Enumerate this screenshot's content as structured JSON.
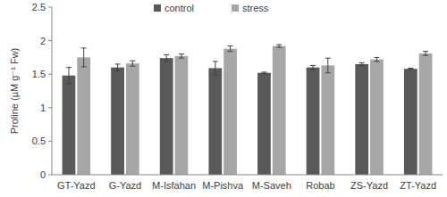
{
  "chart_data": {
    "type": "bar",
    "y_label": "Proline (µM g⁻¹ Fw)",
    "categories": [
      "GT-Yazd",
      "G-Yazd",
      "M-Isfahan",
      "M-Pishva",
      "M-Saveh",
      "Robab",
      "ZS-Yazd",
      "ZT-Yazd"
    ],
    "series": [
      {
        "name": "control",
        "color": "#595959",
        "values": [
          1.48,
          1.6,
          1.74,
          1.59,
          1.52,
          1.6,
          1.65,
          1.58
        ],
        "errors": [
          0.12,
          0.05,
          0.05,
          0.1,
          0.01,
          0.03,
          0.02,
          0.01
        ]
      },
      {
        "name": "stress",
        "color": "#a6a6a6",
        "values": [
          1.75,
          1.66,
          1.77,
          1.88,
          1.92,
          1.63,
          1.72,
          1.81
        ],
        "errors": [
          0.14,
          0.04,
          0.03,
          0.04,
          0.02,
          0.11,
          0.03,
          0.03
        ]
      }
    ],
    "ylim": [
      0,
      2.5
    ],
    "yticks": [
      0,
      0.5,
      1,
      1.5,
      2,
      2.5
    ],
    "grid": false,
    "legend": "top"
  }
}
